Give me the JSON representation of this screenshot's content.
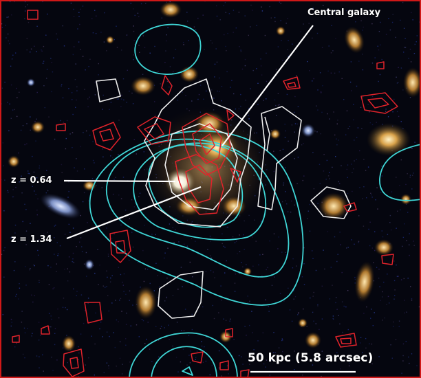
{
  "annotations": {
    "central_galaxy": "Central galaxy",
    "z1": "z = 0.64",
    "z2": "z = 1.34"
  },
  "scale_bar": {
    "label": "50 kpc (5.8 arcsec)"
  },
  "contour_colors": {
    "cyan": "#3fd6d6",
    "white": "#eeeeee",
    "red": "#e0232b"
  },
  "frame_color": "#d01818"
}
